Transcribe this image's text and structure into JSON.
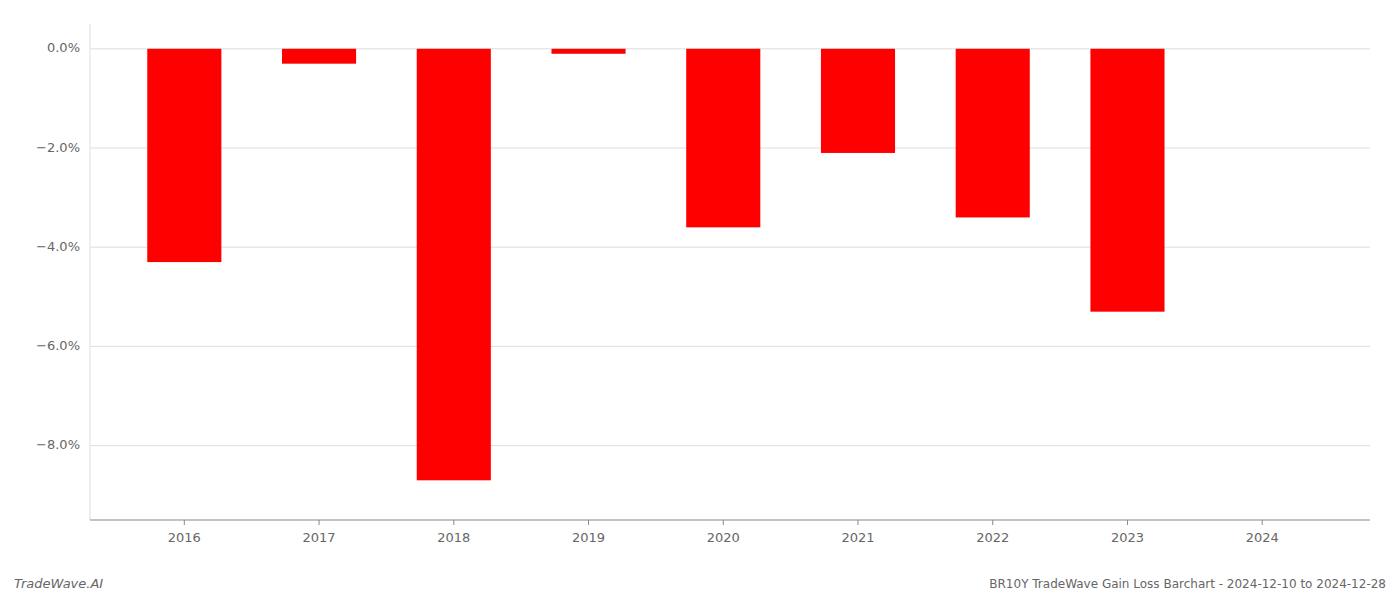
{
  "chart_data": {
    "type": "bar",
    "title": "BR10Y TradeWave Gain Loss Barchart - 2024-12-10 to 2024-12-28",
    "annotations": [
      "TradeWave.AI"
    ],
    "x": [
      2016,
      2017,
      2018,
      2019,
      2020,
      2021,
      2022,
      2023,
      2024
    ],
    "values": [
      -4.3,
      -0.3,
      -8.7,
      -0.1,
      -3.6,
      -2.1,
      -3.4,
      -5.3,
      0.0
    ],
    "color": "#ff0000",
    "xlim": [
      2015.3,
      2024.8
    ],
    "xticks": [
      2016,
      2017,
      2018,
      2019,
      2020,
      2021,
      2022,
      2023,
      2024
    ],
    "ylim": [
      -9.5,
      0.5
    ],
    "yticks": [
      {
        "value": 0.0,
        "label": "0.0%"
      },
      {
        "value": -2.0,
        "label": "−2.0%"
      },
      {
        "value": -4.0,
        "label": "−4.0%"
      },
      {
        "value": -6.0,
        "label": "−6.0%"
      },
      {
        "value": -8.0,
        "label": "−8.0%"
      }
    ],
    "grid": true
  }
}
